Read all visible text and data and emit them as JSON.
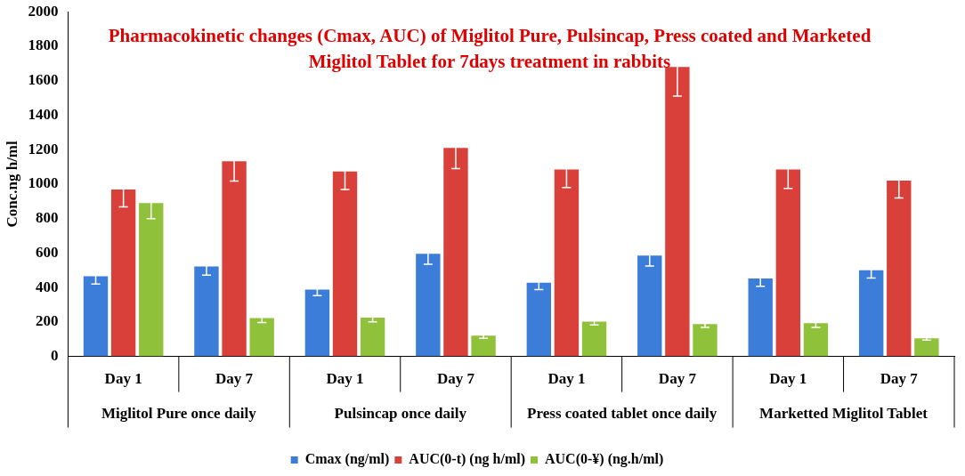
{
  "chart_data": {
    "type": "bar",
    "title": "Pharmacokinetic changes (Cmax, AUC) of Miglitol Pure, Pulsincap, Press coated and Marketed Miglitol Tablet for 7days treatment in rabbits",
    "ylabel": "Conc.ng h/ml",
    "categories": [
      "Day 1",
      "Day 7",
      "Day 1",
      "Day 7",
      "Day 1",
      "Day 7",
      "Day 1",
      "Day 7"
    ],
    "annotations": [
      "Miglitol Pure once daily",
      "Pulsincap once daily",
      "Press coated tablet once daily",
      "Marketted Miglitol Tablet"
    ],
    "series": [
      {
        "name": "Cmax (ng/ml)",
        "color": "#3b7dd8",
        "values": [
          465,
          522,
          388,
          595,
          428,
          585,
          452,
          500
        ],
        "errors": [
          45,
          50,
          35,
          60,
          40,
          60,
          45,
          45
        ]
      },
      {
        "name": "AUC(0-t) (ng h/ml)",
        "color": "#d9403a",
        "values": [
          968,
          1133,
          1073,
          1210,
          1085,
          1680,
          1085,
          1020
        ],
        "errors": [
          100,
          115,
          105,
          120,
          105,
          170,
          110,
          100
        ]
      },
      {
        "name": "AUC(0-¥) (ng.h/ml)",
        "color": "#8fc23a",
        "values": [
          890,
          222,
          225,
          120,
          202,
          188,
          193,
          105
        ],
        "errors": [
          90,
          25,
          25,
          15,
          20,
          20,
          25,
          10
        ]
      }
    ],
    "ylim": [
      0,
      2000
    ],
    "yticks": [
      0,
      200,
      400,
      600,
      800,
      1000,
      1200,
      1400,
      1600,
      1800,
      2000
    ],
    "grid": false,
    "legend": "bottom"
  }
}
